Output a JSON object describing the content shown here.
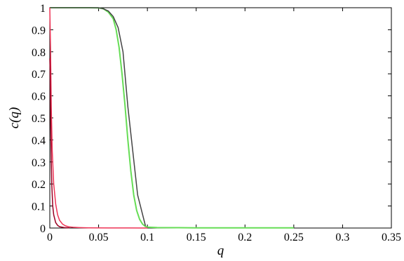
{
  "chart_data": {
    "type": "line",
    "xlabel": "q",
    "ylabel": "c(q)",
    "xlim": [
      0,
      0.35
    ],
    "ylim": [
      0,
      1
    ],
    "grid": false,
    "x_ticks": [
      0,
      0.05,
      0.1,
      0.15,
      0.2,
      0.25,
      0.3,
      0.35
    ],
    "x_tick_labels": [
      "0",
      "0.05",
      "0.1",
      "0.15",
      "0.2",
      "0.25",
      "0.3",
      "0.35"
    ],
    "y_ticks": [
      0,
      0.1,
      0.2,
      0.3,
      0.4,
      0.5,
      0.6,
      0.7,
      0.8,
      0.9,
      1
    ],
    "y_tick_labels": [
      "0",
      "0.1",
      "0.2",
      "0.3",
      "0.4",
      "0.5",
      "0.6",
      "0.7",
      "0.8",
      "0.9",
      "1"
    ],
    "series": [
      {
        "color": "#66dd55",
        "x": [
          0,
          0.01,
          0.02,
          0.03,
          0.04,
          0.05,
          0.055,
          0.06,
          0.065,
          0.068,
          0.071,
          0.074,
          0.077,
          0.08,
          0.083,
          0.086,
          0.089,
          0.092,
          0.095,
          0.098,
          0.1,
          0.11,
          0.15,
          0.2,
          0.25
        ],
        "y": [
          1,
          1,
          1,
          1,
          1,
          0.999,
          0.995,
          0.98,
          0.95,
          0.9,
          0.82,
          0.7,
          0.56,
          0.4,
          0.26,
          0.15,
          0.08,
          0.04,
          0.018,
          0.007,
          0.004,
          0.002,
          0.001,
          0.001,
          0.001
        ]
      },
      {
        "color": "#444444",
        "x": [
          0,
          0.01,
          0.02,
          0.03,
          0.04,
          0.05,
          0.055,
          0.06,
          0.065,
          0.07,
          0.075,
          0.08,
          0.09,
          0.098
        ],
        "y": [
          1,
          1,
          1,
          1,
          1,
          1,
          0.995,
          0.985,
          0.96,
          0.91,
          0.8,
          0.55,
          0.15,
          0.01
        ]
      },
      {
        "color": "#ee3355",
        "x": [
          0,
          0.0008,
          0.0015,
          0.0025,
          0.004,
          0.006,
          0.008,
          0.01,
          0.013,
          0.016,
          0.02,
          0.025,
          0.03,
          0.04,
          0.06,
          0.08,
          0.1
        ],
        "y": [
          1,
          0.8,
          0.55,
          0.35,
          0.2,
          0.11,
          0.06,
          0.035,
          0.018,
          0.01,
          0.005,
          0.003,
          0.002,
          0.001,
          0.0005,
          0.0003,
          0.0002
        ]
      },
      {
        "color": "#990022",
        "x": [
          0,
          0.0003,
          0.0006,
          0.001,
          0.0015,
          0.002,
          0.003,
          0.004,
          0.006,
          0.008,
          0.01,
          0.015,
          0.02
        ],
        "y": [
          0.77,
          0.72,
          0.6,
          0.45,
          0.3,
          0.2,
          0.1,
          0.06,
          0.025,
          0.012,
          0.006,
          0.002,
          0.001
        ]
      }
    ]
  }
}
